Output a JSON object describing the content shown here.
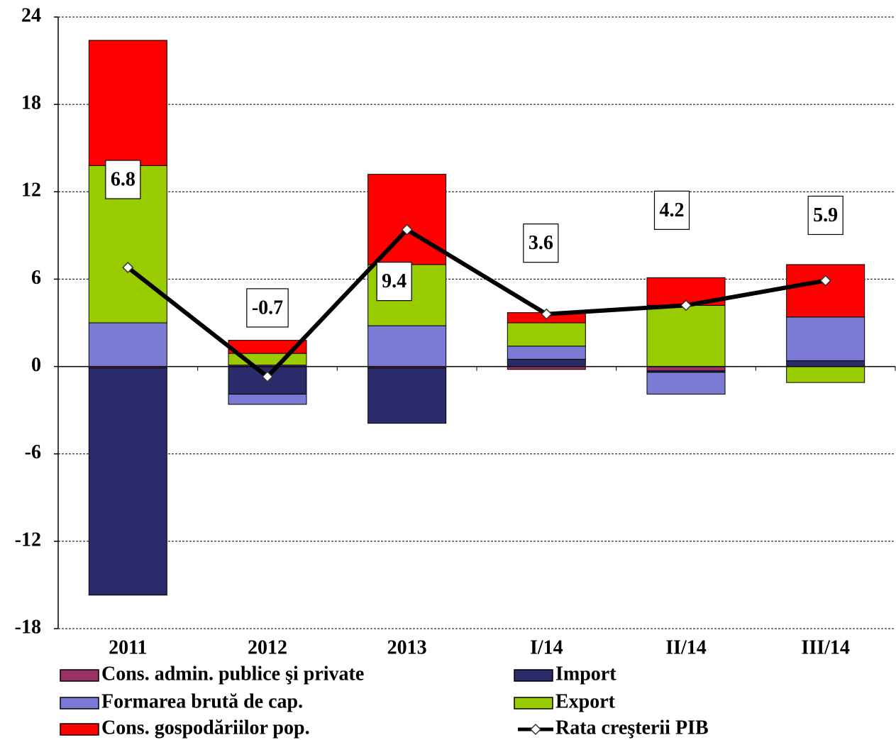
{
  "chart_data": {
    "type": "bar",
    "categories": [
      "2011",
      "2012",
      "2013",
      "I/14",
      "II/14",
      "III/14"
    ],
    "series": [
      {
        "name": "Cons. admin. publice şi private",
        "color": "#993366",
        "values": [
          -0.1,
          0.1,
          -0.1,
          -0.2,
          -0.3,
          0.0
        ]
      },
      {
        "name": "Import",
        "color": "#2b2b6b",
        "values": [
          -15.6,
          -1.9,
          -3.8,
          0.5,
          -0.1,
          0.4
        ]
      },
      {
        "name": "Formarea brută de cap.",
        "color": "#7b7bd6",
        "values": [
          3.0,
          -0.7,
          2.8,
          0.9,
          -1.5,
          3.0
        ]
      },
      {
        "name": "Export",
        "color": "#99cc00",
        "values": [
          10.8,
          0.8,
          4.2,
          1.6,
          4.2,
          -1.1
        ]
      },
      {
        "name": "Cons. gospodăriilor pop.",
        "color": "#ff0000",
        "values": [
          8.6,
          0.9,
          6.2,
          0.7,
          1.9,
          3.6
        ]
      },
      {
        "name": "Rata creşterii PIB",
        "color": "#000000",
        "type": "line",
        "values": [
          6.8,
          -0.7,
          9.4,
          3.6,
          4.2,
          5.9
        ]
      }
    ],
    "stacked": true,
    "ylim": [
      -18,
      24
    ],
    "yticks": [
      -18,
      -12,
      -6,
      0,
      6,
      12,
      18,
      24
    ],
    "grid": true
  }
}
